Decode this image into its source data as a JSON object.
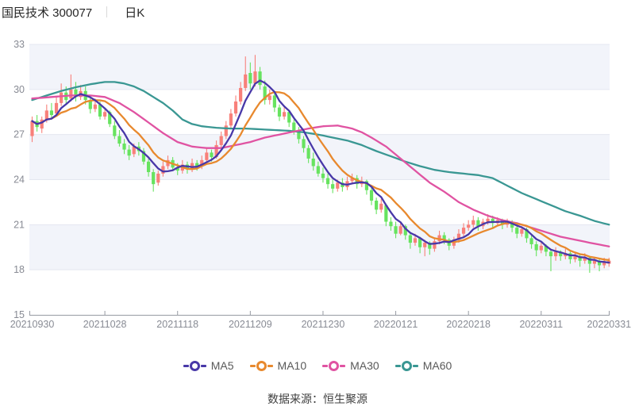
{
  "header": {
    "title": "国民技术 300077",
    "period_label": "日K"
  },
  "footer": {
    "source_label": "数据来源：恒生聚源"
  },
  "legend": {
    "items": [
      {
        "label": "MA5",
        "color": "#4838a8"
      },
      {
        "label": "MA10",
        "color": "#e8892e"
      },
      {
        "label": "MA30",
        "color": "#e053a2"
      },
      {
        "label": "MA60",
        "color": "#3a9793"
      }
    ]
  },
  "chart_data": {
    "type": "candlestick",
    "title": "国民技术 300077 日K",
    "x_tick_labels": [
      "20210930",
      "20211028",
      "20211118",
      "20211209",
      "20211230",
      "20220121",
      "20220218",
      "20220311",
      "20220331"
    ],
    "x_tick_indices": [
      0,
      15,
      30,
      45,
      60,
      75,
      90,
      105,
      119
    ],
    "y_ticks": [
      15,
      18,
      21,
      24,
      27,
      30,
      33
    ],
    "ylim": [
      15,
      33
    ],
    "grid": true,
    "legend_position": "bottom",
    "colors": {
      "up": "#f8807a",
      "down": "#67e35f",
      "ma5": "#4838a8",
      "ma10": "#e8892e",
      "ma30": "#e053a2",
      "ma60": "#3a9793",
      "band": "#f2f4fa",
      "grid_line": "#e4e7f0",
      "axis_line": "#979ba3",
      "tick_text": "#888b94"
    },
    "candles": [
      [
        26.9,
        28.2,
        26.5,
        27.9
      ],
      [
        27.9,
        28.3,
        27.2,
        27.5
      ],
      [
        27.4,
        28.2,
        27.1,
        28.0
      ],
      [
        28.0,
        29.0,
        27.8,
        28.6
      ],
      [
        28.6,
        29.1,
        28.0,
        28.3
      ],
      [
        28.4,
        29.5,
        28.2,
        29.1
      ],
      [
        29.1,
        30.4,
        28.9,
        29.8
      ],
      [
        29.8,
        30.2,
        29.0,
        29.3
      ],
      [
        29.4,
        31.0,
        29.2,
        30.0
      ],
      [
        30.0,
        30.5,
        29.2,
        29.5
      ],
      [
        29.5,
        30.3,
        29.3,
        29.9
      ],
      [
        29.9,
        30.2,
        29.0,
        29.3
      ],
      [
        29.3,
        29.6,
        28.4,
        28.7
      ],
      [
        28.7,
        29.4,
        28.5,
        29.0
      ],
      [
        29.0,
        29.2,
        28.0,
        28.2
      ],
      [
        28.2,
        28.8,
        28.0,
        28.5
      ],
      [
        28.5,
        28.6,
        27.5,
        27.7
      ],
      [
        27.6,
        27.9,
        26.7,
        26.9
      ],
      [
        26.9,
        27.3,
        26.2,
        26.4
      ],
      [
        26.4,
        26.7,
        25.7,
        26.0
      ],
      [
        26.0,
        26.3,
        25.3,
        25.6
      ],
      [
        25.7,
        26.4,
        25.5,
        26.2
      ],
      [
        26.2,
        26.5,
        25.6,
        25.9
      ],
      [
        25.9,
        26.1,
        25.0,
        25.2
      ],
      [
        25.2,
        25.4,
        24.2,
        24.5
      ],
      [
        24.5,
        24.7,
        23.2,
        23.7
      ],
      [
        23.8,
        24.6,
        23.6,
        24.4
      ],
      [
        24.4,
        25.2,
        24.2,
        24.9
      ],
      [
        24.9,
        25.6,
        24.7,
        25.3
      ],
      [
        25.3,
        25.5,
        24.6,
        24.8
      ],
      [
        24.8,
        25.1,
        24.3,
        24.6
      ],
      [
        24.6,
        25.3,
        24.4,
        25.0
      ],
      [
        25.0,
        25.2,
        24.4,
        24.7
      ],
      [
        24.7,
        25.4,
        24.5,
        25.1
      ],
      [
        25.1,
        25.3,
        24.6,
        24.9
      ],
      [
        24.9,
        25.6,
        24.7,
        25.3
      ],
      [
        25.3,
        26.1,
        25.1,
        25.8
      ],
      [
        25.8,
        26.0,
        25.2,
        25.5
      ],
      [
        25.5,
        26.6,
        25.4,
        26.3
      ],
      [
        26.3,
        27.2,
        26.1,
        26.9
      ],
      [
        26.9,
        27.9,
        26.7,
        27.6
      ],
      [
        27.6,
        28.7,
        27.4,
        28.4
      ],
      [
        28.4,
        29.6,
        28.2,
        29.2
      ],
      [
        29.2,
        30.5,
        29.0,
        30.1
      ],
      [
        30.1,
        32.2,
        29.9,
        31.0
      ],
      [
        31.1,
        31.8,
        30.0,
        30.4
      ],
      [
        30.4,
        32.3,
        30.2,
        31.2
      ],
      [
        31.2,
        31.5,
        30.0,
        30.3
      ],
      [
        30.2,
        30.6,
        29.0,
        29.3
      ],
      [
        29.3,
        30.0,
        29.0,
        29.6
      ],
      [
        29.6,
        29.8,
        28.5,
        28.8
      ],
      [
        28.8,
        29.0,
        27.9,
        28.2
      ],
      [
        28.2,
        28.8,
        28.0,
        28.5
      ],
      [
        28.5,
        28.6,
        27.5,
        27.8
      ],
      [
        27.8,
        28.0,
        27.0,
        27.2
      ],
      [
        27.2,
        27.5,
        26.4,
        26.7
      ],
      [
        26.7,
        26.9,
        25.8,
        26.1
      ],
      [
        26.1,
        26.3,
        25.1,
        25.4
      ],
      [
        25.4,
        25.8,
        24.6,
        24.9
      ],
      [
        24.9,
        25.2,
        24.2,
        24.4
      ],
      [
        24.4,
        24.8,
        23.8,
        24.1
      ],
      [
        24.1,
        24.4,
        23.4,
        23.7
      ],
      [
        23.7,
        24.0,
        23.1,
        23.4
      ],
      [
        23.4,
        24.0,
        23.2,
        23.8
      ],
      [
        23.8,
        24.1,
        23.2,
        23.5
      ],
      [
        23.5,
        24.2,
        23.3,
        23.9
      ],
      [
        23.9,
        24.4,
        23.7,
        24.1
      ],
      [
        24.1,
        24.3,
        23.4,
        23.7
      ],
      [
        23.7,
        24.2,
        23.5,
        23.9
      ],
      [
        23.9,
        24.0,
        23.0,
        23.3
      ],
      [
        23.3,
        23.5,
        22.3,
        22.6
      ],
      [
        22.6,
        22.8,
        21.7,
        22.0
      ],
      [
        22.0,
        22.7,
        21.8,
        22.4
      ],
      [
        22.3,
        22.4,
        20.9,
        21.2
      ],
      [
        21.2,
        21.5,
        20.6,
        20.9
      ],
      [
        20.9,
        21.2,
        20.1,
        20.4
      ],
      [
        20.4,
        21.2,
        20.3,
        20.9
      ],
      [
        20.9,
        21.0,
        20.0,
        20.3
      ],
      [
        20.3,
        20.5,
        19.4,
        19.8
      ],
      [
        19.8,
        20.4,
        19.6,
        20.1
      ],
      [
        20.1,
        20.2,
        19.1,
        19.5
      ],
      [
        19.5,
        20.0,
        18.9,
        19.8
      ],
      [
        19.8,
        19.9,
        19.0,
        19.4
      ],
      [
        19.4,
        20.1,
        19.2,
        19.9
      ],
      [
        19.9,
        20.6,
        19.7,
        20.3
      ],
      [
        20.3,
        20.5,
        19.7,
        20.0
      ],
      [
        20.0,
        20.1,
        19.3,
        19.6
      ],
      [
        19.6,
        20.2,
        19.4,
        20.0
      ],
      [
        20.0,
        20.7,
        19.8,
        20.4
      ],
      [
        20.4,
        21.1,
        20.2,
        20.8
      ],
      [
        20.8,
        21.3,
        20.6,
        21.0
      ],
      [
        21.0,
        21.6,
        20.8,
        21.3
      ],
      [
        21.3,
        21.5,
        20.6,
        20.9
      ],
      [
        20.9,
        21.4,
        20.7,
        21.2
      ],
      [
        21.2,
        21.7,
        21.0,
        21.4
      ],
      [
        21.4,
        21.6,
        20.8,
        21.1
      ],
      [
        21.1,
        21.5,
        20.9,
        21.3
      ],
      [
        21.3,
        21.4,
        20.7,
        21.0
      ],
      [
        21.0,
        21.4,
        20.8,
        21.2
      ],
      [
        21.2,
        21.3,
        20.5,
        20.8
      ],
      [
        20.8,
        21.0,
        20.1,
        20.4
      ],
      [
        20.4,
        20.9,
        20.2,
        20.7
      ],
      [
        20.7,
        20.8,
        19.8,
        20.1
      ],
      [
        20.1,
        20.3,
        19.4,
        19.7
      ],
      [
        19.7,
        19.9,
        18.9,
        19.3
      ],
      [
        19.3,
        19.8,
        19.1,
        19.6
      ],
      [
        19.6,
        19.7,
        18.9,
        19.2
      ],
      [
        19.2,
        19.4,
        17.9,
        18.9
      ],
      [
        18.9,
        19.5,
        18.6,
        19.2
      ],
      [
        19.2,
        19.3,
        18.6,
        18.9
      ],
      [
        18.9,
        19.4,
        18.7,
        19.1
      ],
      [
        19.1,
        19.2,
        18.4,
        18.7
      ],
      [
        18.7,
        19.2,
        18.5,
        18.9
      ],
      [
        18.9,
        19.0,
        18.2,
        18.6
      ],
      [
        18.6,
        19.1,
        18.4,
        18.8
      ],
      [
        18.8,
        18.9,
        17.8,
        18.4
      ],
      [
        18.4,
        18.8,
        18.1,
        18.6
      ],
      [
        18.6,
        18.7,
        17.9,
        18.3
      ],
      [
        18.3,
        18.8,
        18.1,
        18.5
      ],
      [
        18.4,
        18.8,
        18.2,
        18.6
      ]
    ],
    "series": [
      {
        "name": "MA5",
        "derived_from_close_period": 5
      },
      {
        "name": "MA10",
        "derived_from_close_period": 10
      },
      {
        "name": "MA30",
        "waypoints": [
          [
            0,
            29.4
          ],
          [
            4,
            29.5
          ],
          [
            8,
            29.6
          ],
          [
            12,
            29.6
          ],
          [
            15,
            29.5
          ],
          [
            18,
            29.1
          ],
          [
            21,
            28.5
          ],
          [
            24,
            27.8
          ],
          [
            27,
            27.1
          ],
          [
            30,
            26.5
          ],
          [
            33,
            26.2
          ],
          [
            36,
            26.1
          ],
          [
            39,
            26.1
          ],
          [
            42,
            26.3
          ],
          [
            45,
            26.5
          ],
          [
            48,
            26.8
          ],
          [
            51,
            27.0
          ],
          [
            54,
            27.2
          ],
          [
            57,
            27.4
          ],
          [
            60,
            27.55
          ],
          [
            63,
            27.6
          ],
          [
            66,
            27.4
          ],
          [
            68,
            27.15
          ],
          [
            70,
            26.8
          ],
          [
            73,
            26.2
          ],
          [
            76,
            25.4
          ],
          [
            79,
            24.6
          ],
          [
            82,
            23.8
          ],
          [
            85,
            23.2
          ],
          [
            88,
            22.5
          ],
          [
            91,
            22.0
          ],
          [
            94,
            21.6
          ],
          [
            97,
            21.3
          ],
          [
            100,
            21.1
          ],
          [
            103,
            20.8
          ],
          [
            106,
            20.5
          ],
          [
            109,
            20.2
          ],
          [
            112,
            20.0
          ],
          [
            115,
            19.8
          ],
          [
            119,
            19.55
          ]
        ]
      },
      {
        "name": "MA60",
        "waypoints": [
          [
            0,
            29.3
          ],
          [
            3,
            29.6
          ],
          [
            6,
            29.9
          ],
          [
            9,
            30.15
          ],
          [
            12,
            30.35
          ],
          [
            15,
            30.5
          ],
          [
            17,
            30.5
          ],
          [
            19,
            30.4
          ],
          [
            21,
            30.2
          ],
          [
            23,
            29.9
          ],
          [
            25,
            29.5
          ],
          [
            27,
            29.1
          ],
          [
            29,
            28.6
          ],
          [
            31,
            28.0
          ],
          [
            33,
            27.7
          ],
          [
            35,
            27.55
          ],
          [
            38,
            27.45
          ],
          [
            41,
            27.4
          ],
          [
            44,
            27.4
          ],
          [
            47,
            27.35
          ],
          [
            50,
            27.3
          ],
          [
            53,
            27.25
          ],
          [
            56,
            27.15
          ],
          [
            59,
            27.0
          ],
          [
            62,
            26.8
          ],
          [
            65,
            26.6
          ],
          [
            68,
            26.3
          ],
          [
            71,
            25.9
          ],
          [
            74,
            25.55
          ],
          [
            77,
            25.2
          ],
          [
            80,
            24.9
          ],
          [
            83,
            24.65
          ],
          [
            86,
            24.5
          ],
          [
            89,
            24.4
          ],
          [
            92,
            24.3
          ],
          [
            95,
            24.1
          ],
          [
            98,
            23.6
          ],
          [
            101,
            23.1
          ],
          [
            104,
            22.7
          ],
          [
            107,
            22.3
          ],
          [
            110,
            21.9
          ],
          [
            113,
            21.6
          ],
          [
            116,
            21.25
          ],
          [
            119,
            21.0
          ]
        ]
      }
    ]
  }
}
